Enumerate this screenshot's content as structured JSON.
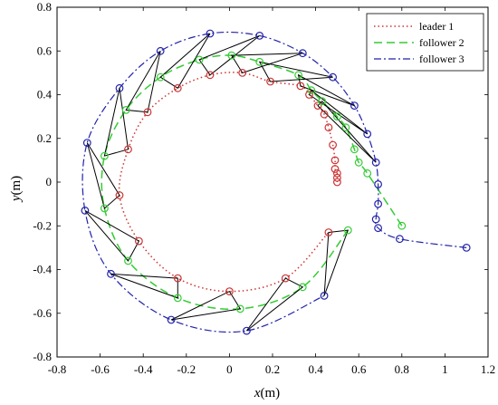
{
  "chart_data": {
    "type": "line",
    "xlabel_var": "x",
    "xlabel_unit": "(m)",
    "ylabel_var": "y",
    "ylabel_unit": "(m)",
    "xlim": [
      -0.8,
      1.2
    ],
    "ylim": [
      -0.8,
      0.8
    ],
    "xticks": [
      "-0.8",
      "-0.6",
      "-0.4",
      "-0.2",
      "0",
      "0.2",
      "0.4",
      "0.6",
      "0.8",
      "1",
      "1.2"
    ],
    "yticks": [
      "-0.8",
      "-0.6",
      "-0.4",
      "-0.2",
      "0",
      "0.2",
      "0.4",
      "0.6",
      "0.8"
    ],
    "legend_position": "top-right",
    "series": [
      {
        "name": "leader 1",
        "color": "#cc3333",
        "line_style": "dotted",
        "markers": [
          [
            0.5,
            0.0
          ],
          [
            0.5,
            0.02
          ],
          [
            0.5,
            0.04
          ],
          [
            0.49,
            0.06
          ],
          [
            0.49,
            0.1
          ],
          [
            0.48,
            0.17
          ],
          [
            0.46,
            0.25
          ],
          [
            0.44,
            0.31
          ],
          [
            0.41,
            0.35
          ],
          [
            0.37,
            0.4
          ],
          [
            0.33,
            0.44
          ],
          [
            0.19,
            0.46
          ],
          [
            0.06,
            0.5
          ],
          [
            -0.09,
            0.49
          ],
          [
            -0.24,
            0.43
          ],
          [
            -0.38,
            0.32
          ],
          [
            -0.47,
            0.15
          ],
          [
            -0.51,
            -0.06
          ],
          [
            -0.42,
            -0.27
          ],
          [
            -0.24,
            -0.44
          ],
          [
            0.0,
            -0.5
          ],
          [
            0.26,
            -0.44
          ],
          [
            0.46,
            -0.23
          ]
        ]
      },
      {
        "name": "follower 2",
        "color": "#33cc33",
        "line_style": "dashed",
        "markers": [
          [
            0.8,
            -0.2
          ],
          [
            0.64,
            0.04
          ],
          [
            0.6,
            0.09
          ],
          [
            0.58,
            0.15
          ],
          [
            0.54,
            0.25
          ],
          [
            0.5,
            0.3
          ],
          [
            0.43,
            0.37
          ],
          [
            0.38,
            0.42
          ],
          [
            0.32,
            0.49
          ],
          [
            0.14,
            0.55
          ],
          [
            0.01,
            0.58
          ],
          [
            -0.14,
            0.56
          ],
          [
            -0.32,
            0.48
          ],
          [
            -0.48,
            0.33
          ],
          [
            -0.58,
            0.12
          ],
          [
            -0.58,
            -0.12
          ],
          [
            -0.47,
            -0.36
          ],
          [
            -0.24,
            -0.53
          ],
          [
            0.05,
            -0.58
          ],
          [
            0.34,
            -0.48
          ],
          [
            0.55,
            -0.22
          ]
        ]
      },
      {
        "name": "follower 3",
        "color": "#2222aa",
        "line_style": "dashdot",
        "markers": [
          [
            1.1,
            -0.3
          ],
          [
            0.79,
            -0.26
          ],
          [
            0.69,
            -0.21
          ],
          [
            0.68,
            -0.17
          ],
          [
            0.69,
            -0.1
          ],
          [
            0.69,
            -0.01
          ],
          [
            0.68,
            0.09
          ],
          [
            0.64,
            0.22
          ],
          [
            0.58,
            0.35
          ],
          [
            0.48,
            0.48
          ],
          [
            0.34,
            0.59
          ],
          [
            0.14,
            0.67
          ],
          [
            -0.09,
            0.68
          ],
          [
            -0.32,
            0.6
          ],
          [
            -0.51,
            0.43
          ],
          [
            -0.66,
            0.18
          ],
          [
            -0.67,
            -0.13
          ],
          [
            -0.55,
            -0.42
          ],
          [
            -0.27,
            -0.63
          ],
          [
            0.08,
            -0.68
          ],
          [
            0.44,
            -0.52
          ]
        ]
      }
    ],
    "connections": [
      [
        [
          0.46,
          -0.23
        ],
        [
          0.55,
          -0.22
        ],
        [
          0.44,
          -0.52
        ]
      ],
      [
        [
          0.26,
          -0.44
        ],
        [
          0.34,
          -0.48
        ],
        [
          0.08,
          -0.68
        ]
      ],
      [
        [
          0.0,
          -0.5
        ],
        [
          0.05,
          -0.58
        ],
        [
          -0.27,
          -0.63
        ]
      ],
      [
        [
          -0.24,
          -0.44
        ],
        [
          -0.24,
          -0.53
        ],
        [
          -0.55,
          -0.42
        ]
      ],
      [
        [
          -0.42,
          -0.27
        ],
        [
          -0.47,
          -0.36
        ],
        [
          -0.67,
          -0.13
        ]
      ],
      [
        [
          -0.51,
          -0.06
        ],
        [
          -0.58,
          -0.12
        ],
        [
          -0.66,
          0.18
        ]
      ],
      [
        [
          -0.47,
          0.15
        ],
        [
          -0.58,
          0.12
        ],
        [
          -0.51,
          0.43
        ]
      ],
      [
        [
          -0.38,
          0.32
        ],
        [
          -0.48,
          0.33
        ],
        [
          -0.32,
          0.6
        ]
      ],
      [
        [
          -0.24,
          0.43
        ],
        [
          -0.32,
          0.48
        ],
        [
          -0.09,
          0.68
        ]
      ],
      [
        [
          -0.09,
          0.49
        ],
        [
          -0.14,
          0.56
        ],
        [
          0.14,
          0.67
        ]
      ],
      [
        [
          0.06,
          0.5
        ],
        [
          0.01,
          0.58
        ],
        [
          0.34,
          0.59
        ]
      ],
      [
        [
          0.19,
          0.46
        ],
        [
          0.14,
          0.55
        ],
        [
          0.48,
          0.48
        ]
      ],
      [
        [
          0.33,
          0.44
        ],
        [
          0.32,
          0.49
        ],
        [
          0.58,
          0.35
        ]
      ],
      [
        [
          0.37,
          0.4
        ],
        [
          0.38,
          0.42
        ],
        [
          0.64,
          0.22
        ]
      ],
      [
        [
          0.41,
          0.35
        ],
        [
          0.43,
          0.37
        ],
        [
          0.68,
          0.09
        ]
      ]
    ]
  }
}
